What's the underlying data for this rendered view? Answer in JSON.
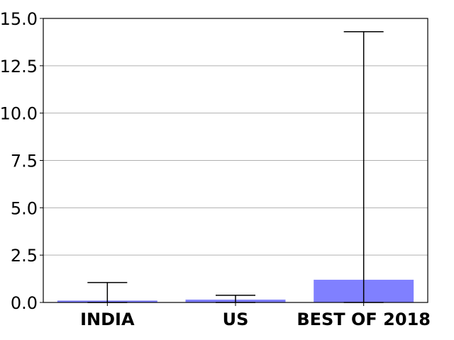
{
  "chart_data": {
    "type": "bar",
    "title": "",
    "xlabel": "",
    "ylabel": "",
    "categories": [
      "INDIA",
      "US",
      "BEST OF 2018"
    ],
    "values": [
      0.1,
      0.15,
      1.2
    ],
    "error_upper": [
      1.05,
      0.38,
      14.3
    ],
    "error_lower": [
      0.0,
      0.0,
      0.0
    ],
    "ylim": [
      0,
      15.0
    ],
    "yticks": [
      0.0,
      2.5,
      5.0,
      7.5,
      10.0,
      12.5,
      15.0
    ],
    "ytick_labels": [
      "0.0",
      "2.5",
      "5.0",
      "7.5",
      "10.0",
      "12.5",
      "15.0"
    ],
    "grid": "y",
    "legend": "none",
    "colors": {
      "bar": "#8080ff",
      "error_bar": "#000000",
      "grid": "#b0b0b0",
      "axes": "#000000"
    }
  }
}
